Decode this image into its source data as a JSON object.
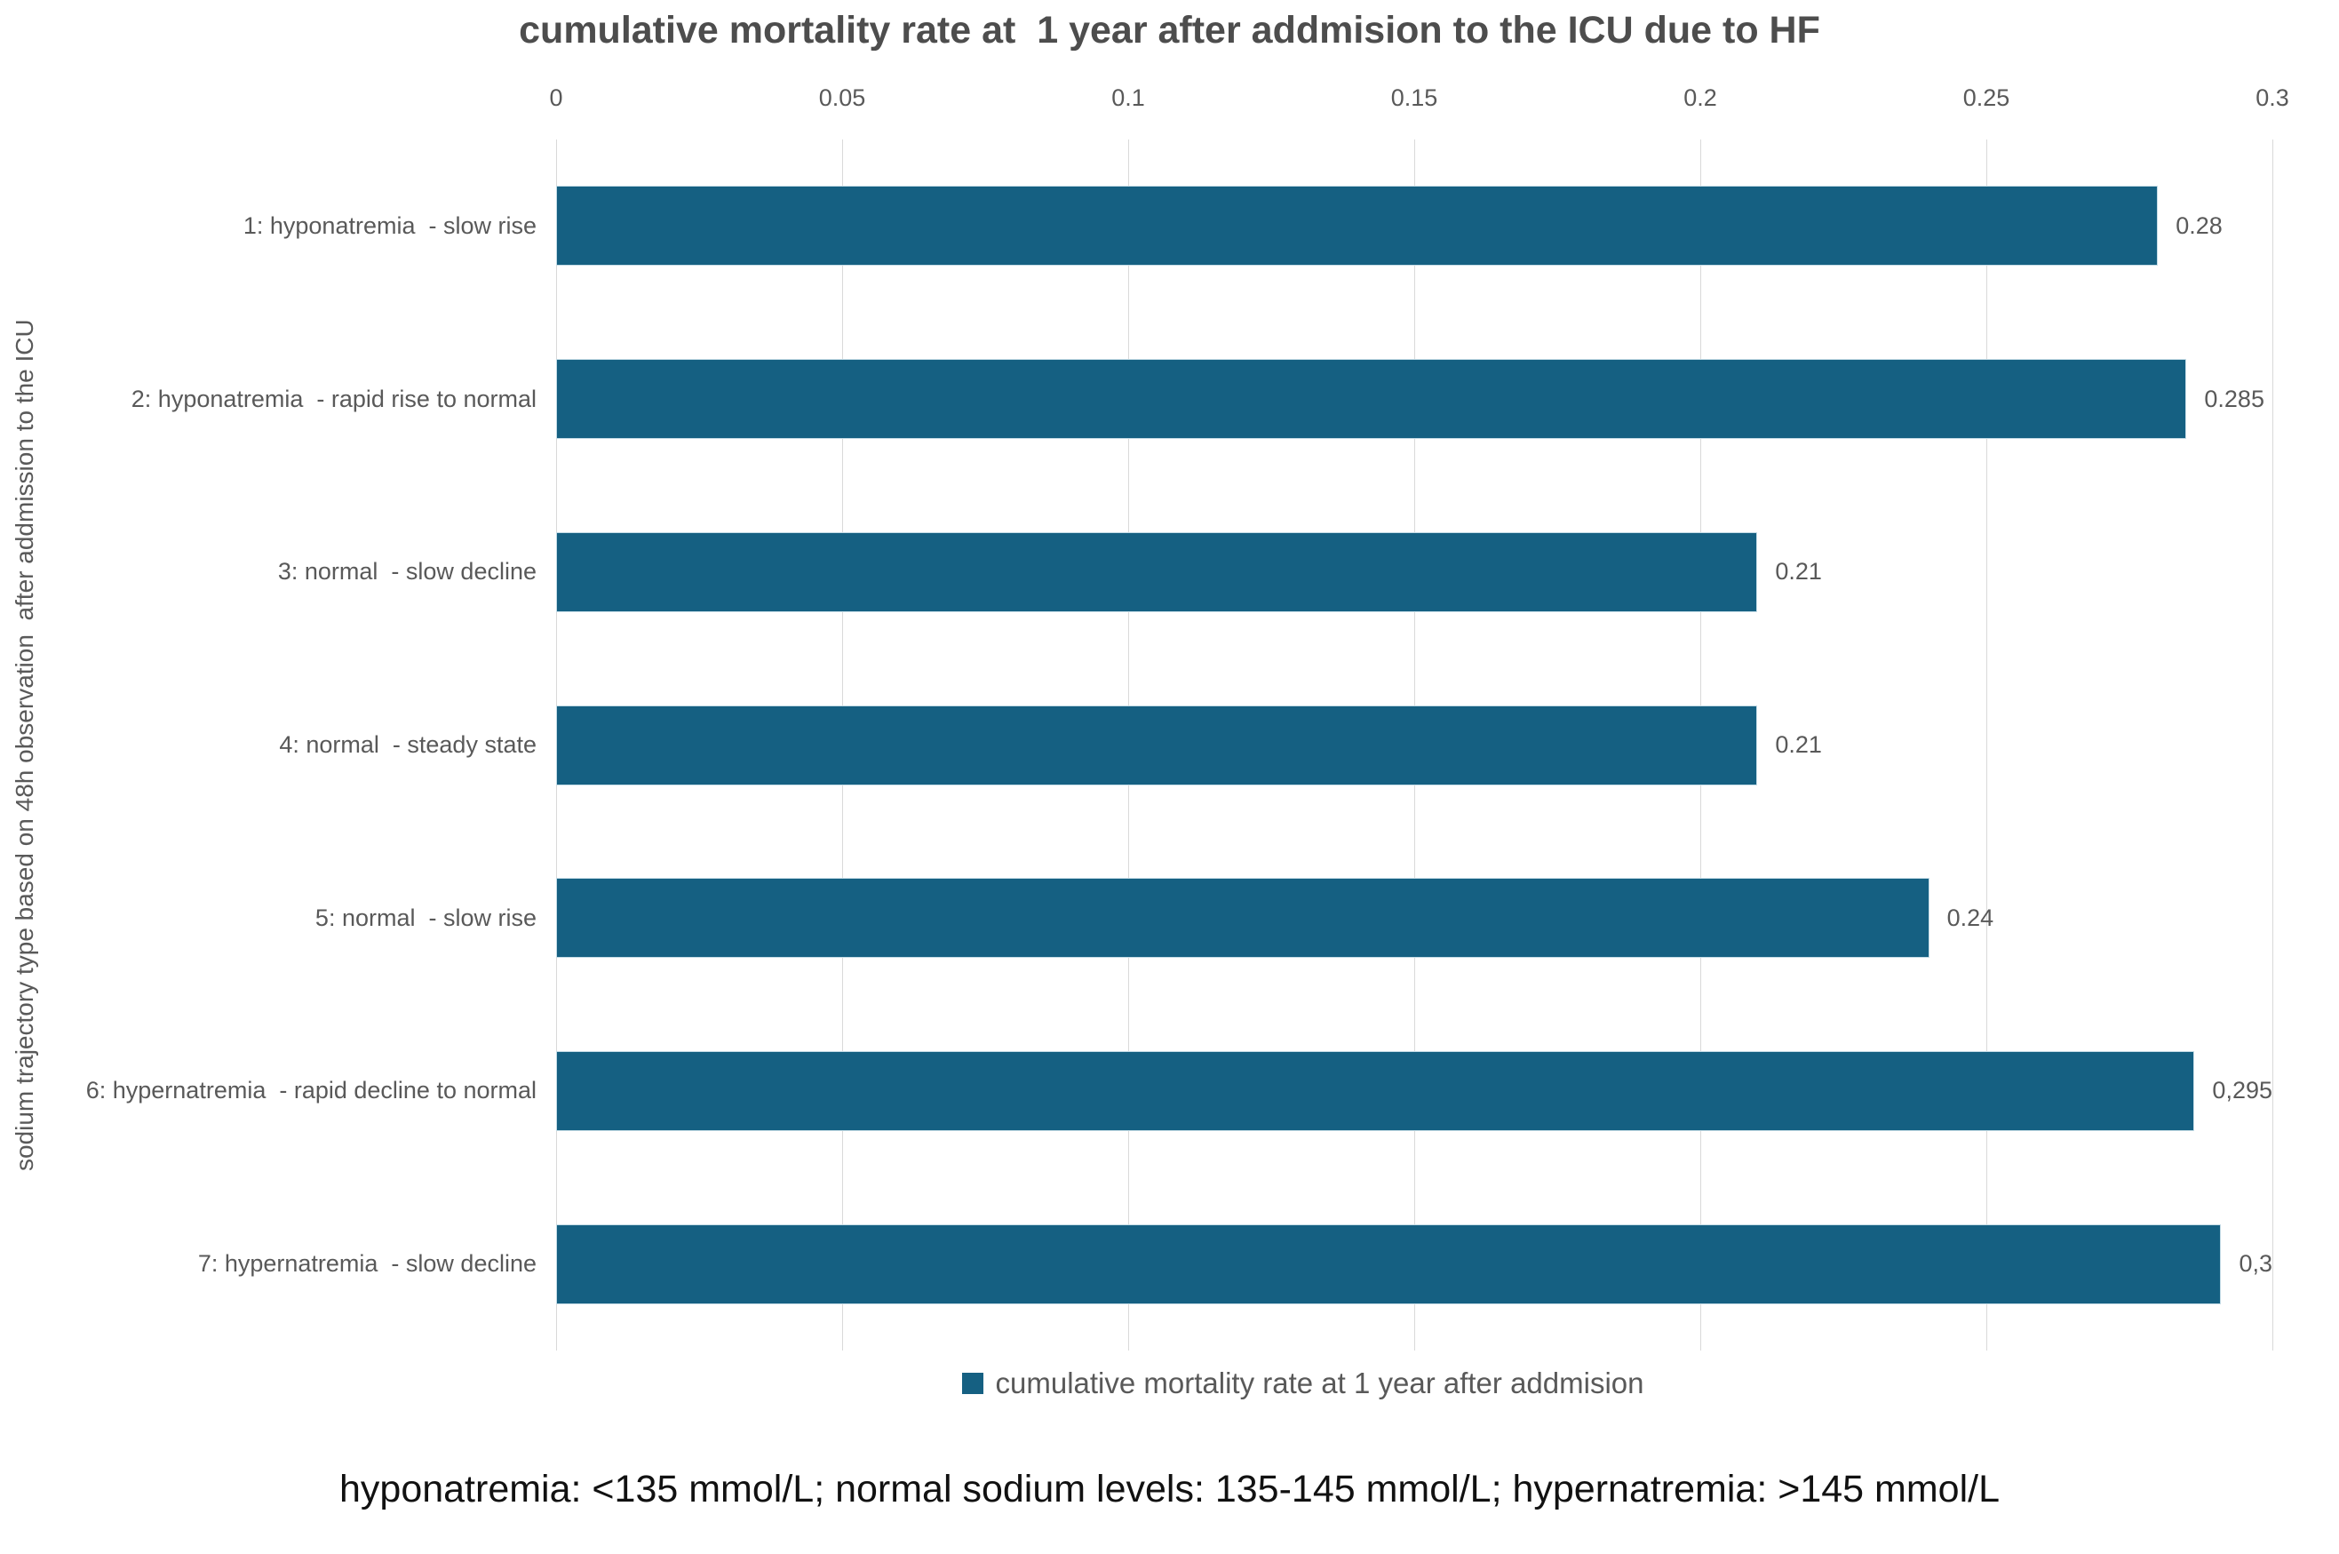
{
  "title": "cumulative mortality rate at  1 year after addmision to the ICU due to HF",
  "y_axis_title": "sodium trajectory type based on 48h observation  after addmission to the ICU",
  "axis": {
    "ticks": [
      "0",
      "0.05",
      "0.1",
      "0.15",
      "0.2",
      "0.25",
      "0.3"
    ]
  },
  "chart_data": {
    "type": "bar",
    "orientation": "horizontal",
    "title": "cumulative mortality rate at  1 year after addmision to the ICU due to HF",
    "xlabel": "cumulative mortality rate at 1 year",
    "ylabel": "sodium trajectory type based on 48h observation  after addmission to the ICU",
    "categories": [
      "1: hyponatremia  - slow rise",
      "2: hyponatremia  - rapid rise to normal",
      "3: normal  - slow decline",
      "4: normal  - steady state",
      "5: normal  - slow rise",
      "6: hypernatremia  - rapid decline to normal",
      "7: hypernatremia  - slow decline"
    ],
    "values": [
      0.28,
      0.285,
      0.21,
      0.21,
      0.24,
      0.295,
      0.3
    ],
    "value_labels": [
      "0.28",
      "0.285",
      "0.21",
      "0.21",
      "0.24",
      "0,295",
      "0,3"
    ],
    "xlim": [
      0,
      0.3
    ],
    "xticks": [
      0,
      0.05,
      0.1,
      0.15,
      0.2,
      0.25,
      0.3
    ],
    "grid": true,
    "gridline_color": "#d9d9d9",
    "bar_color": "#156082",
    "legend_position": "bottom",
    "legend": [
      "cumulative mortality rate at 1 year after addmision"
    ]
  },
  "legend": {
    "label": "cumulative mortality rate at 1 year after addmision",
    "marker_color": "#156082"
  },
  "footnote": "hyponatremia: <135 mmol/L; normal sodium levels: 135-145 mmol/L; hypernatremia: >145 mmol/L"
}
